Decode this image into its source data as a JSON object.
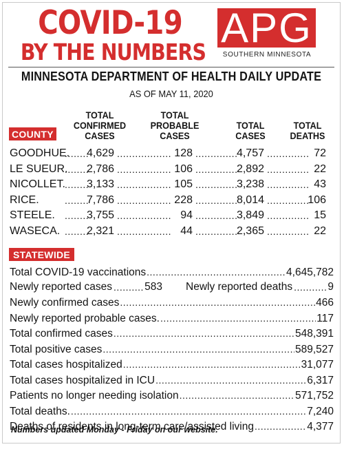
{
  "header": {
    "title_line1": "COVID-19",
    "title_line2": "BY THE NUMBERS",
    "logo_text": "APG",
    "logo_subtext": "SOUTHERN MINNESOTA",
    "headline": "MINNESOTA DEPARTMENT OF HEALTH DAILY UPDATE",
    "as_of": "AS OF MAY 11, 2020"
  },
  "colors": {
    "accent": "#d42e2e",
    "text": "#141414"
  },
  "county_table": {
    "badge": "COUNTY",
    "columns": {
      "confirmed": "TOTAL\nCONFIRMED\nCASES",
      "probable": "TOTAL\nPROBABLE\nCASES",
      "cases": "TOTAL\nCASES",
      "deaths": "TOTAL\nDEATHS"
    },
    "rows": [
      {
        "county": "GOODHUE.",
        "confirmed": "4,629",
        "probable": "128",
        "cases": "4,757",
        "deaths": "72"
      },
      {
        "county": "LE SUEUR.",
        "confirmed": "2,786",
        "probable": "106",
        "cases": "2,892",
        "deaths": "22"
      },
      {
        "county": "NICOLLET.",
        "confirmed": "3,133",
        "probable": "105",
        "cases": "3,238",
        "deaths": "43"
      },
      {
        "county": "RICE.",
        "confirmed": "7,786",
        "probable": "228",
        "cases": "8,014",
        "deaths": "106"
      },
      {
        "county": "STEELE.",
        "confirmed": "3,755",
        "probable": "94",
        "cases": "3,849",
        "deaths": "15"
      },
      {
        "county": "WASECA.",
        "confirmed": "2,321",
        "probable": "44",
        "cases": "2,365",
        "deaths": "22"
      }
    ]
  },
  "statewide": {
    "badge": "STATEWIDE",
    "vaccinations": {
      "label": "Total COVID-19 vaccinations",
      "value": "4,645,782"
    },
    "new_cases": {
      "label": "Newly reported cases",
      "value": "583"
    },
    "new_deaths": {
      "label": "Newly reported deaths",
      "value": "9"
    },
    "rows": [
      {
        "label": "Newly confirmed cases",
        "value": "466"
      },
      {
        "label": "Newly reported probable cases.",
        "value": "117"
      },
      {
        "label": "Total confirmed cases",
        "value": "548,391"
      },
      {
        "label": "Total positive cases",
        "value": "589,527"
      },
      {
        "label": "Total cases hospitalized",
        "value": "31,077"
      },
      {
        "label": "Total cases hospitalized in ICU",
        "value": "6,317"
      },
      {
        "label": "Patients no longer needing isolation",
        "value": "571,752"
      },
      {
        "label": "Total deaths.",
        "value": "7,240"
      },
      {
        "label": "Deaths of residents in long-term care/assisted living",
        "value": "4,377"
      }
    ]
  },
  "footnote": "Numbers updated Monday - Friday on our website."
}
